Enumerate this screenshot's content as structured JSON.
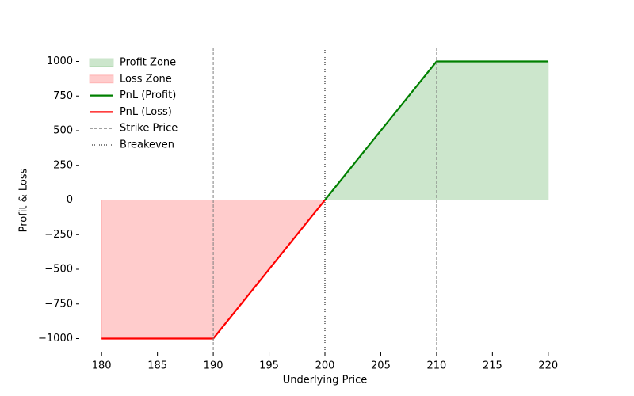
{
  "chart_data": {
    "type": "line",
    "xlabel": "Underlying Price",
    "ylabel": "Profit & Loss",
    "x": [
      180,
      190,
      200,
      210,
      220
    ],
    "series": [
      {
        "name": "Profit Zone",
        "kind": "area",
        "color": "#008000",
        "opacity": 0.2,
        "values": [
          null,
          null,
          0,
          1000,
          1000
        ]
      },
      {
        "name": "Loss Zone",
        "kind": "area",
        "color": "#ff0000",
        "opacity": 0.2,
        "values": [
          -1000,
          -1000,
          0,
          null,
          null
        ]
      },
      {
        "name": "PnL (Profit)",
        "kind": "line",
        "color": "#008000",
        "values": [
          null,
          null,
          0,
          1000,
          1000
        ]
      },
      {
        "name": "PnL (Loss)",
        "kind": "line",
        "color": "#ff0000",
        "values": [
          -1000,
          -1000,
          0,
          null,
          null
        ]
      }
    ],
    "vlines": [
      {
        "name": "Strike Price",
        "color": "#808080",
        "style": "dashed",
        "values": [
          190,
          210
        ]
      },
      {
        "name": "Breakeven",
        "color": "#000000",
        "style": "dotted",
        "values": [
          200
        ]
      }
    ],
    "xlim": [
      178,
      222
    ],
    "ylim": [
      -1100,
      1100
    ],
    "xticks": [
      180,
      185,
      190,
      195,
      200,
      205,
      210,
      215,
      220
    ],
    "yticks": [
      {
        "value": -1000,
        "label": "−1000"
      },
      {
        "value": -750,
        "label": "−750"
      },
      {
        "value": -500,
        "label": "−500"
      },
      {
        "value": -250,
        "label": "−250"
      },
      0,
      250,
      500,
      750,
      1000
    ],
    "legend": "upper left"
  }
}
